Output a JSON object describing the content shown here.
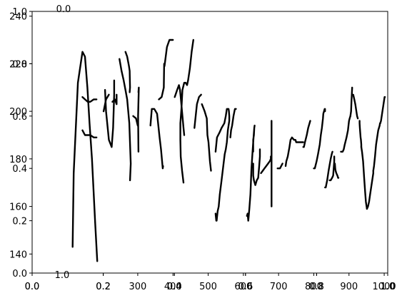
{
  "chart_data": {
    "type": "line",
    "title": "",
    "xlabel": "",
    "ylabel": "",
    "grid": false,
    "legend": "none",
    "stroke_color": "#000000",
    "axes": [
      {
        "name": "overlay-unit",
        "xlim": [
          0,
          1
        ],
        "ylim": [
          0,
          1
        ],
        "xticks": [
          0.0,
          0.2,
          0.4,
          0.6,
          0.8,
          1.0
        ],
        "yticks": [
          0.0,
          0.2,
          0.4,
          0.6,
          0.8,
          1.0
        ],
        "xtick_labels": [
          "0.0",
          "0.2",
          "0.4",
          "0.6",
          "0.8",
          "1.0"
        ],
        "ytick_labels": [
          "0.0",
          "0.2",
          "0.4",
          "0.6",
          "0.8",
          "1.0"
        ]
      },
      {
        "name": "data",
        "xlim": [
          0,
          1010
        ],
        "ylim": [
          132,
          242
        ],
        "xticks": [
          300,
          400,
          500,
          600,
          700,
          800,
          900,
          1000
        ],
        "yticks": [
          140,
          160,
          180,
          200,
          220,
          240
        ],
        "xtick_labels": [
          "300",
          "400",
          "500",
          "600",
          "700",
          "800",
          "900",
          "1000"
        ],
        "ytick_labels": [
          "140",
          "160",
          "180",
          "200",
          "220",
          "240"
        ]
      },
      {
        "name": "overlay-row",
        "xlim": [
          0,
          1
        ],
        "ylim": [
          0,
          1
        ],
        "xticks": [
          0.0,
          0.2,
          0.4,
          0.6,
          0.8,
          1.0
        ],
        "yticks": [],
        "xtick_labels": [
          "0.0",
          "0.2",
          "0.4",
          "0.6",
          "0.8",
          "1.0"
        ],
        "ytick_labels": []
      }
    ],
    "stray_labels": [
      "0.0",
      "1.0"
    ],
    "series": [
      {
        "x": [
          115,
          118,
          130,
          143,
          150,
          157,
          163,
          170,
          179,
          185
        ],
        "y": [
          143,
          174,
          212,
          225,
          223,
          210,
          195,
          180,
          153,
          137
        ]
      },
      {
        "x": [
          143,
          150,
          158,
          165,
          175,
          183
        ],
        "y": [
          206,
          205,
          204,
          204,
          205,
          205
        ]
      },
      {
        "x": [
          143,
          150,
          158,
          165,
          175,
          183
        ],
        "y": [
          192,
          190,
          190,
          190,
          189,
          189
        ]
      },
      {
        "x": [
          207,
          210,
          218,
          226,
          230,
          233,
          233
        ],
        "y": [
          209,
          200,
          188,
          185,
          193,
          207,
          213
        ]
      },
      {
        "x": [
          203,
          210,
          218
        ],
        "y": [
          200,
          205,
          207
        ]
      },
      {
        "x": [
          228,
          235,
          240,
          240,
          240
        ],
        "y": [
          204,
          205,
          203,
          205,
          207
        ]
      },
      {
        "x": [
          248,
          254,
          260,
          265,
          270,
          276,
          280,
          278
        ],
        "y": [
          222,
          217,
          213,
          209,
          205,
          195,
          178,
          171
        ]
      },
      {
        "x": [
          265,
          270,
          275,
          277,
          278,
          277
        ],
        "y": [
          225,
          223,
          219,
          217,
          210,
          208
        ]
      },
      {
        "x": [
          287,
          295,
          300
        ],
        "y": [
          198,
          197,
          194
        ]
      },
      {
        "x": [
          302,
          301,
          303,
          302
        ],
        "y": [
          183,
          198,
          210,
          208
        ]
      },
      {
        "x": [
          336,
          340,
          347,
          355,
          362,
          366,
          371,
          372
        ],
        "y": [
          194,
          201,
          201,
          199,
          189,
          184,
          176,
          177
        ]
      },
      {
        "x": [
          360,
          368,
          374,
          375
        ],
        "y": [
          205,
          206,
          210,
          220
        ]
      },
      {
        "x": [
          376,
          383,
          390,
          400
        ],
        "y": [
          219,
          227,
          230,
          230
        ]
      },
      {
        "x": [
          405,
          412,
          417,
          420,
          422,
          425,
          430,
          432
        ],
        "y": [
          206,
          209,
          211,
          209,
          206,
          201,
          193,
          190
        ]
      },
      {
        "x": [
          430,
          426,
          422,
          421,
          421,
          424,
          427,
          432,
          436,
          440,
          443,
          448,
          453,
          458,
          458,
          458
        ],
        "y": [
          170,
          175,
          181,
          188,
          195,
          201,
          209,
          212,
          212,
          211,
          213,
          218,
          225,
          230,
          230,
          230
        ]
      },
      {
        "x": [
          461,
          468,
          474,
          480
        ],
        "y": [
          193,
          203,
          206,
          207
        ]
      },
      {
        "x": [
          482,
          490,
          496,
          498,
          501,
          505,
          508
        ],
        "y": [
          203,
          200,
          197,
          190,
          187,
          179,
          175
        ]
      },
      {
        "x": [
          521,
          525,
          532,
          538,
          546,
          550,
          553,
          556,
          558,
          559,
          560,
          560,
          558,
          556,
          553,
          550,
          547,
          543,
          538,
          533,
          530,
          527,
          524,
          523,
          521
        ],
        "y": [
          183,
          189,
          191,
          193,
          195,
          198,
          201,
          201,
          201,
          200,
          198,
          196,
          194,
          192,
          187,
          184,
          182,
          177,
          171,
          165,
          160,
          158,
          154,
          154,
          157
        ]
      },
      {
        "x": [
          563,
          565,
          568,
          572,
          576,
          579,
          579,
          579
        ],
        "y": [
          189,
          192,
          194,
          198,
          201,
          201,
          201,
          201
        ]
      },
      {
        "x": [
          610,
          612,
          614,
          617,
          620,
          623,
          626,
          629,
          631,
          632,
          632,
          631,
          630,
          628,
          628
        ],
        "y": [
          156,
          157,
          154,
          159,
          165,
          176,
          183,
          189,
          193,
          194,
          194,
          193,
          190,
          188,
          183
        ]
      },
      {
        "x": [
          628,
          628,
          630,
          634,
          638,
          642,
          645,
          647,
          647
        ],
        "y": [
          178,
          173,
          171,
          169,
          171,
          172,
          177,
          181,
          184
        ]
      },
      {
        "x": [
          650,
          655,
          660,
          665,
          670,
          675,
          678,
          678,
          678
        ],
        "y": [
          174,
          175,
          176,
          177,
          178,
          179,
          180,
          181,
          181
        ]
      },
      {
        "x": [
          680,
          680,
          680,
          680
        ],
        "y": [
          160,
          175,
          186,
          196
        ]
      },
      {
        "x": [
          697,
          704,
          711
        ],
        "y": [
          176,
          176,
          178
        ]
      },
      {
        "x": [
          720,
          720,
          722,
          726,
          731,
          734,
          738,
          744,
          748,
          750,
          755,
          760,
          765,
          770
        ],
        "y": [
          177,
          177,
          179,
          181,
          185,
          188,
          189,
          188,
          188,
          187,
          187,
          187,
          187,
          187
        ]
      },
      {
        "x": [
          770,
          772,
          775,
          780,
          784,
          790
        ],
        "y": [
          185,
          185,
          187,
          190,
          193,
          196
        ]
      },
      {
        "x": [
          800,
          803,
          808,
          812,
          817,
          820,
          823,
          826,
          827,
          829,
          831,
          832,
          832,
          832
        ],
        "y": [
          176,
          176,
          179,
          182,
          186,
          190,
          193,
          197,
          199,
          200,
          201,
          201,
          200,
          200
        ]
      },
      {
        "x": [
          832,
          834,
          838,
          842,
          848,
          851,
          853
        ],
        "y": [
          168,
          168,
          171,
          175,
          180,
          182,
          183
        ]
      },
      {
        "x": [
          845,
          848,
          852,
          855,
          856,
          857,
          858,
          858,
          858
        ],
        "y": [
          171,
          171,
          172,
          173,
          175,
          177,
          179,
          180,
          181
        ]
      },
      {
        "x": [
          860,
          861,
          862,
          864,
          867,
          869,
          870
        ],
        "y": [
          178,
          176,
          175,
          174,
          173,
          172,
          172
        ]
      },
      {
        "x": [
          877,
          882,
          885,
          888,
          893,
          897,
          900,
          902,
          904
        ],
        "y": [
          183,
          183,
          184,
          186,
          189,
          192,
          196,
          197,
          198
        ]
      },
      {
        "x": [
          904,
          906,
          907,
          908,
          909,
          909
        ],
        "y": [
          198,
          200,
          204,
          207,
          210,
          210
        ]
      },
      {
        "x": [
          912,
          915,
          918,
          920,
          922,
          923,
          925
        ],
        "y": [
          207,
          205,
          203,
          201,
          199,
          198,
          197
        ]
      },
      {
        "x": [
          930,
          930,
          931,
          932,
          933,
          934,
          935,
          935
        ],
        "y": [
          196,
          195,
          193,
          191,
          189,
          188,
          186,
          185
        ]
      },
      {
        "x": [
          935,
          937,
          940,
          943,
          946,
          948,
          950,
          951
        ],
        "y": [
          185,
          183,
          179,
          172,
          166,
          162,
          160,
          159
        ]
      },
      {
        "x": [
          951,
          954,
          957,
          960,
          963,
          966,
          968,
          969,
          969
        ],
        "y": [
          159,
          160,
          162,
          165,
          168,
          171,
          173,
          174,
          175
        ]
      },
      {
        "x": [
          969,
          971,
          974,
          977,
          980,
          983,
          985,
          987,
          988,
          989
        ],
        "y": [
          175,
          177,
          181,
          186,
          189,
          192,
          193,
          194,
          195,
          195
        ]
      },
      {
        "x": [
          989,
          991,
          993,
          995,
          997,
          999,
          1000,
          1001,
          1002
        ],
        "y": [
          195,
          196,
          198,
          200,
          202,
          204,
          205,
          206,
          206
        ]
      }
    ]
  }
}
